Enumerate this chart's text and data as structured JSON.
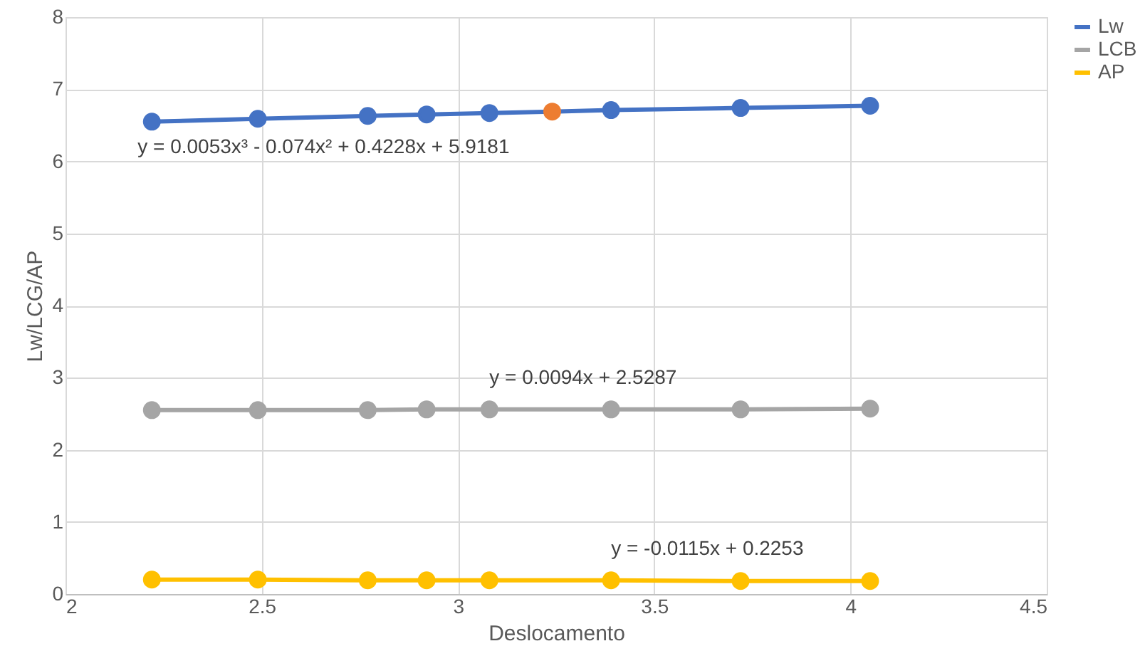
{
  "chart_data": {
    "type": "line",
    "xlabel": "Deslocamento",
    "ylabel": "Lw/LCG/AP",
    "xlim": [
      2,
      4.5
    ],
    "xticks": [
      2,
      2.5,
      3,
      3.5,
      4,
      4.5
    ],
    "ylim": [
      0,
      8
    ],
    "yticks": [
      0,
      1,
      2,
      3,
      4,
      5,
      6,
      7,
      8
    ],
    "grid": true,
    "legend": "right",
    "marker": "circle",
    "line_style": "solid",
    "series": [
      {
        "name": "Lw",
        "color": "#4472c4",
        "x": [
          2.22,
          2.49,
          2.77,
          2.92,
          3.08,
          3.24,
          3.39,
          3.72,
          4.05
        ],
        "values": [
          6.55,
          6.59,
          6.63,
          6.65,
          6.67,
          6.69,
          6.71,
          6.74,
          6.77
        ],
        "colors": [
          "#4472c4",
          "#4472c4",
          "#4472c4",
          "#4472c4",
          "#4472c4",
          "#ed7d31",
          "#4472c4",
          "#4472c4",
          "#4472c4"
        ]
      },
      {
        "name": "LCB",
        "color": "#a5a5a5",
        "x": [
          2.22,
          2.49,
          2.77,
          2.92,
          3.08,
          3.39,
          3.72,
          4.05
        ],
        "values": [
          2.55,
          2.55,
          2.55,
          2.56,
          2.56,
          2.56,
          2.56,
          2.57
        ]
      },
      {
        "name": "AP",
        "color": "#ffc000",
        "x": [
          2.22,
          2.49,
          2.77,
          2.92,
          3.08,
          3.39,
          3.72,
          4.05
        ],
        "values": [
          0.2,
          0.2,
          0.19,
          0.19,
          0.19,
          0.19,
          0.18,
          0.18
        ]
      }
    ],
    "annotations": [
      "y = 0.0053x³ - 0.074x² + 0.4228x + 5.9181",
      "y = 0.0094x + 2.5287",
      "y = -0.0115x + 0.2253"
    ]
  }
}
